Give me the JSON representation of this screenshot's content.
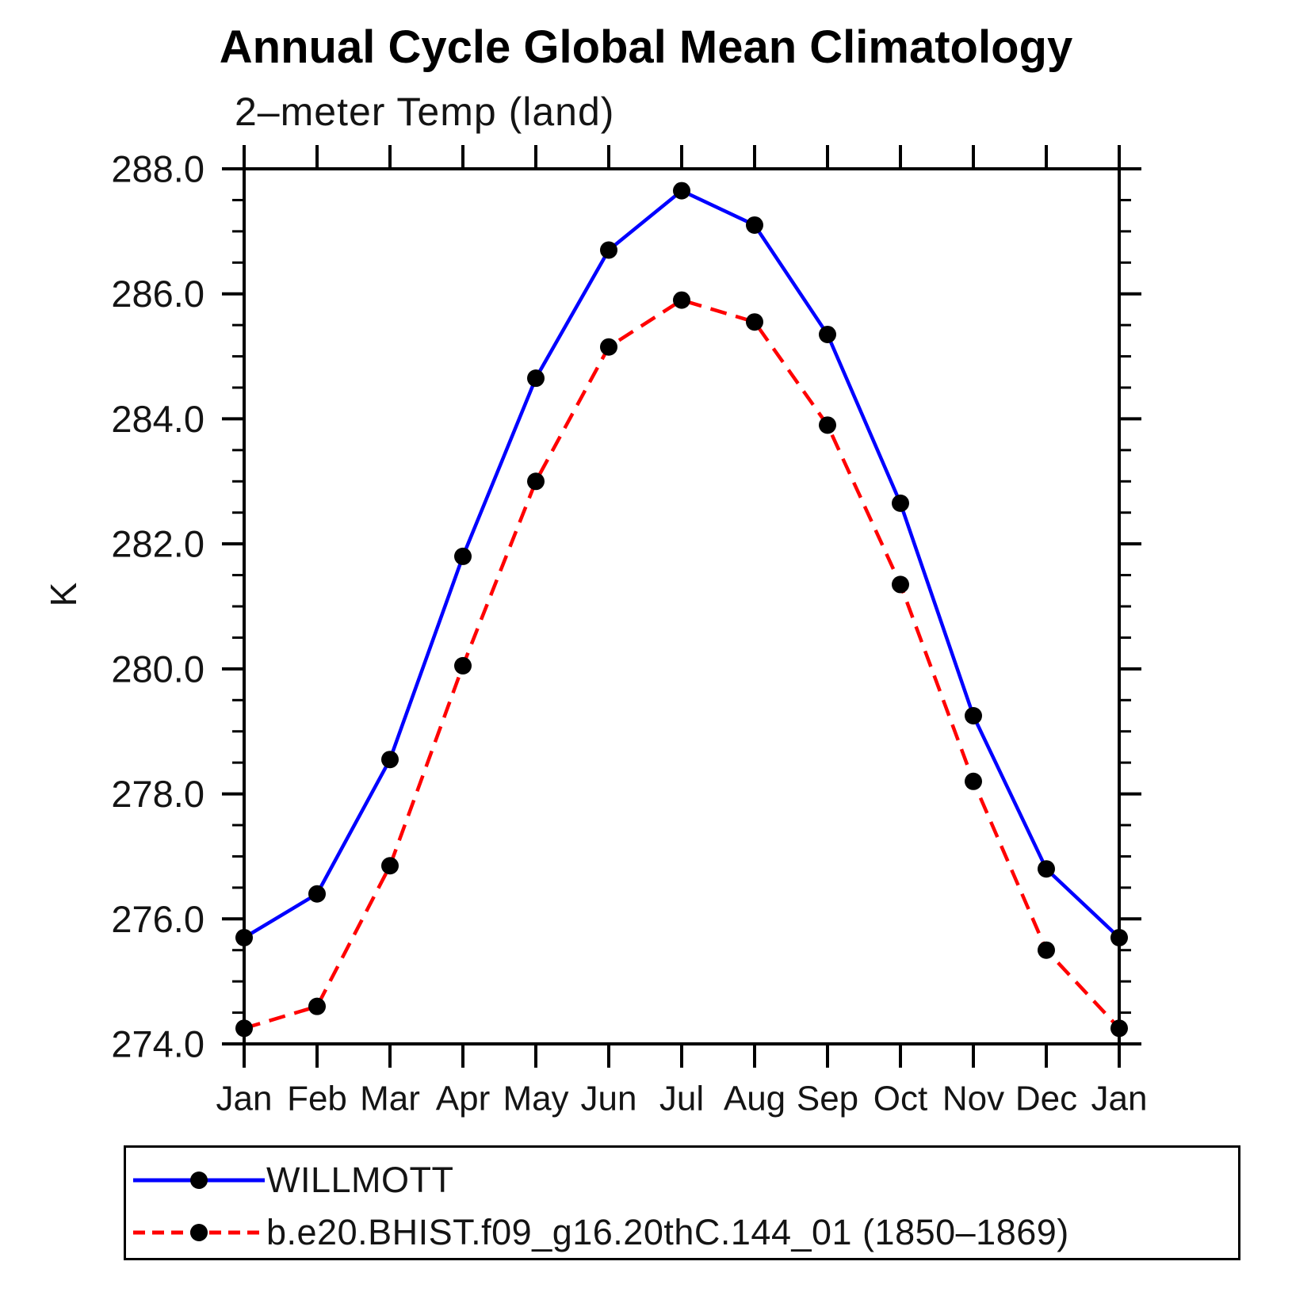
{
  "title": "Annual Cycle Global Mean Climatology",
  "chart_data": {
    "type": "line",
    "title": "Annual Cycle Global Mean Climatology",
    "subtitle": "2–meter Temp (land)",
    "ylabel": "K",
    "xlabel": "",
    "categories": [
      "Jan",
      "Feb",
      "Mar",
      "Apr",
      "May",
      "Jun",
      "Jul",
      "Aug",
      "Sep",
      "Oct",
      "Nov",
      "Dec",
      "Jan"
    ],
    "ylim": [
      274.0,
      288.0
    ],
    "y_major_step": 2.0,
    "y_minor_step": 0.5,
    "y_tick_labels": [
      "274.0",
      "276.0",
      "278.0",
      "280.0",
      "282.0",
      "284.0",
      "286.0",
      "288.0"
    ],
    "grid": false,
    "legend_position": "bottom-left",
    "series": [
      {
        "name": "WILLMOTT",
        "color": "#0000ff",
        "line_style": "solid",
        "marker": "circle",
        "marker_color": "#000000",
        "values": [
          275.7,
          276.4,
          278.55,
          281.8,
          284.65,
          286.7,
          287.65,
          287.1,
          285.35,
          282.65,
          279.25,
          276.8,
          275.7
        ]
      },
      {
        "name": "b.e20.BHIST.f09_g16.20thC.144_01 (1850–1869)",
        "color": "#ff0000",
        "line_style": "dashed",
        "marker": "circle",
        "marker_color": "#000000",
        "values": [
          274.25,
          274.6,
          276.85,
          280.05,
          283.0,
          285.15,
          285.9,
          285.55,
          283.9,
          281.35,
          278.2,
          275.5,
          274.25
        ]
      }
    ]
  }
}
